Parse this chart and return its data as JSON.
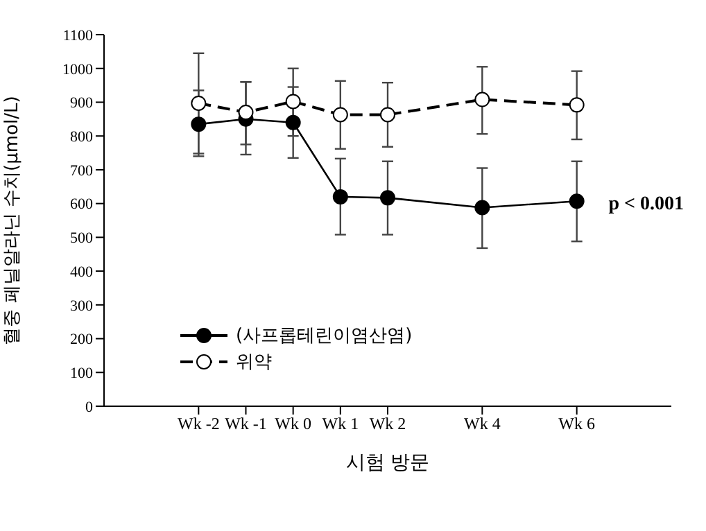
{
  "chart_data": {
    "type": "line",
    "xlabel": "시험 방문",
    "ylabel": "혈중 페닐알라닌 수치(μmol/L)",
    "x": [
      -2,
      -1,
      0,
      1,
      2,
      4,
      6
    ],
    "xlim": [
      -4,
      8
    ],
    "xticks": [
      {
        "value": -2,
        "label": "Wk -2"
      },
      {
        "value": -1,
        "label": "Wk -1"
      },
      {
        "value": 0,
        "label": "Wk 0"
      },
      {
        "value": 1,
        "label": "Wk 1"
      },
      {
        "value": 2,
        "label": "Wk 2"
      },
      {
        "value": 4,
        "label": "Wk 4"
      },
      {
        "value": 6,
        "label": "Wk 6"
      }
    ],
    "ylim": [
      0,
      1100
    ],
    "yticks": [
      0,
      100,
      200,
      300,
      400,
      500,
      600,
      700,
      800,
      900,
      1000,
      1100
    ],
    "series": [
      {
        "name": "(사프롭테린이염산염)",
        "color": "#000000",
        "values": [
          835,
          850,
          840,
          620,
          617,
          588,
          607
        ],
        "errors": [
          [
            740,
            935
          ],
          [
            745,
            960
          ],
          [
            735,
            945
          ],
          [
            508,
            733
          ],
          [
            508,
            725
          ],
          [
            468,
            705
          ],
          [
            488,
            725
          ]
        ],
        "line_style": "solid"
      },
      {
        "name": "위약",
        "color": "#000000",
        "values": [
          897,
          870,
          902,
          863,
          863,
          908,
          892
        ],
        "errors": [
          [
            748,
            1045
          ],
          [
            775,
            960
          ],
          [
            800,
            1000
          ],
          [
            762,
            963
          ],
          [
            768,
            958
          ],
          [
            806,
            1005
          ],
          [
            790,
            992
          ]
        ],
        "line_style": "dashed"
      }
    ],
    "marker": "circle",
    "grid": false,
    "legend": "left",
    "annotations": [
      "p < 0.001"
    ]
  }
}
